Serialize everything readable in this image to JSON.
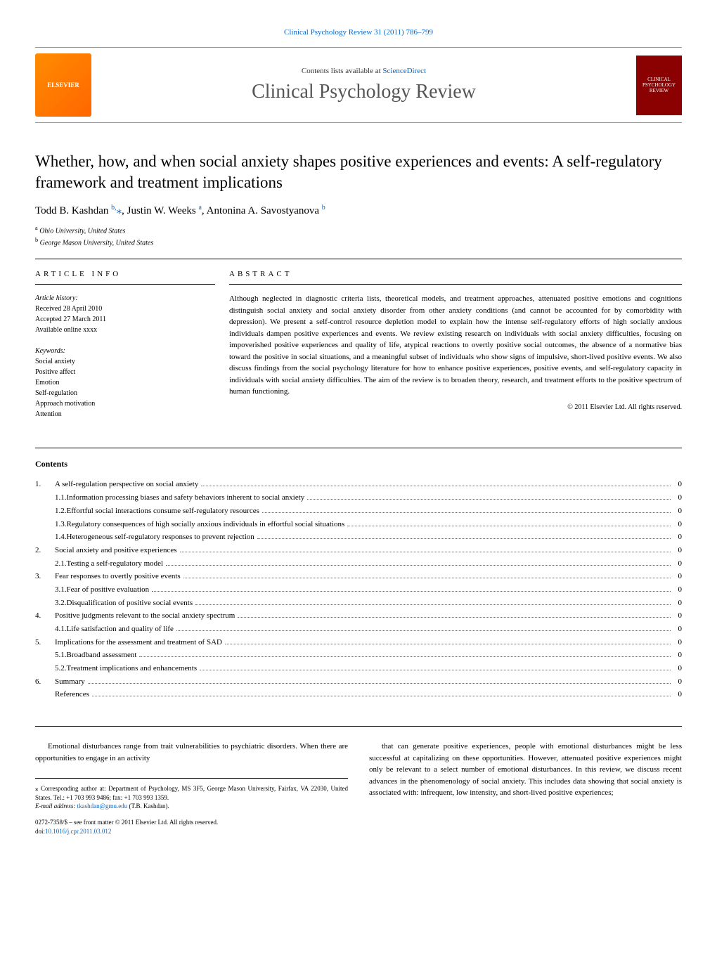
{
  "header_link": "Clinical Psychology Review 31 (2011) 786–799",
  "banner": {
    "contents_prefix": "Contents lists available at ",
    "contents_link": "ScienceDirect",
    "journal_title": "Clinical Psychology Review",
    "logo_text": "ELSEVIER",
    "cover_text": "CLINICAL PSYCHOLOGY REVIEW"
  },
  "title": "Whether, how, and when social anxiety shapes positive experiences and events: A self-regulatory framework and treatment implications",
  "authors_html": "Todd B. Kashdan",
  "author1": {
    "name": "Todd B. Kashdan",
    "sup": "b,",
    "mark": "⁎"
  },
  "author2": {
    "name": "Justin W. Weeks",
    "sup": "a"
  },
  "author3": {
    "name": "Antonina A. Savostyanova",
    "sup": "b"
  },
  "affiliations": {
    "a": "Ohio University, United States",
    "b": "George Mason University, United States"
  },
  "info": {
    "heading": "article info",
    "history_label": "Article history:",
    "received": "Received 28 April 2010",
    "accepted": "Accepted 27 March 2011",
    "available": "Available online xxxx",
    "keywords_label": "Keywords:",
    "keywords": [
      "Social anxiety",
      "Positive affect",
      "Emotion",
      "Self-regulation",
      "Approach motivation",
      "Attention"
    ]
  },
  "abstract": {
    "heading": "abstract",
    "text": "Although neglected in diagnostic criteria lists, theoretical models, and treatment approaches, attenuated positive emotions and cognitions distinguish social anxiety and social anxiety disorder from other anxiety conditions (and cannot be accounted for by comorbidity with depression). We present a self-control resource depletion model to explain how the intense self-regulatory efforts of high socially anxious individuals dampen positive experiences and events. We review existing research on individuals with social anxiety difficulties, focusing on impoverished positive experiences and quality of life, atypical reactions to overtly positive social outcomes, the absence of a normative bias toward the positive in social situations, and a meaningful subset of individuals who show signs of impulsive, short-lived positive events. We also discuss findings from the social psychology literature for how to enhance positive experiences, positive events, and self-regulatory capacity in individuals with social anxiety difficulties. The aim of the review is to broaden theory, research, and treatment efforts to the positive spectrum of human functioning.",
    "copyright": "© 2011 Elsevier Ltd. All rights reserved."
  },
  "contents": {
    "heading": "Contents",
    "items": [
      {
        "num": "1.",
        "text": "A self-regulation perspective on social anxiety",
        "page": "0"
      },
      {
        "num": "1.1.",
        "text": "Information processing biases and safety behaviors inherent to social anxiety",
        "page": "0",
        "sub": true
      },
      {
        "num": "1.2.",
        "text": "Effortful social interactions consume self-regulatory resources",
        "page": "0",
        "sub": true
      },
      {
        "num": "1.3.",
        "text": "Regulatory consequences of high socially anxious individuals in effortful social situations",
        "page": "0",
        "sub": true
      },
      {
        "num": "1.4.",
        "text": "Heterogeneous self-regulatory responses to prevent rejection",
        "page": "0",
        "sub": true
      },
      {
        "num": "2.",
        "text": "Social anxiety and positive experiences",
        "page": "0"
      },
      {
        "num": "2.1.",
        "text": "Testing a self-regulatory model",
        "page": "0",
        "sub": true
      },
      {
        "num": "3.",
        "text": "Fear responses to overtly positive events",
        "page": "0"
      },
      {
        "num": "3.1.",
        "text": "Fear of positive evaluation",
        "page": "0",
        "sub": true
      },
      {
        "num": "3.2.",
        "text": "Disqualification of positive social events",
        "page": "0",
        "sub": true
      },
      {
        "num": "4.",
        "text": "Positive judgments relevant to the social anxiety spectrum",
        "page": "0"
      },
      {
        "num": "4.1.",
        "text": "Life satisfaction and quality of life",
        "page": "0",
        "sub": true
      },
      {
        "num": "5.",
        "text": "Implications for the assessment and treatment of SAD",
        "page": "0"
      },
      {
        "num": "5.1.",
        "text": "Broadband assessment",
        "page": "0",
        "sub": true
      },
      {
        "num": "5.2.",
        "text": "Treatment implications and enhancements",
        "page": "0",
        "sub": true
      },
      {
        "num": "6.",
        "text": "Summary",
        "page": "0"
      },
      {
        "num": "",
        "text": "References",
        "page": "0"
      }
    ]
  },
  "body": {
    "col1": "Emotional disturbances range from trait vulnerabilities to psychiatric disorders. When there are opportunities to engage in an activity",
    "col2": "that can generate positive experiences, people with emotional disturbances might be less successful at capitalizing on these opportunities. However, attenuated positive experiences might only be relevant to a select number of emotional disturbances. In this review, we discuss recent advances in the phenomenology of social anxiety. This includes data showing that social anxiety is associated with: infrequent, low intensity, and short-lived positive experiences;"
  },
  "corresponding": {
    "mark": "⁎",
    "text": "Corresponding author at: Department of Psychology, MS 3F5, George Mason University, Fairfax, VA 22030, United States. Tel.: +1 703 993 9486; fax: +1 703 993 1359.",
    "email_label": "E-mail address:",
    "email": "tkashdan@gmu.edu",
    "email_suffix": "(T.B. Kashdan)."
  },
  "footer": {
    "line1": "0272-7358/$ – see front matter © 2011 Elsevier Ltd. All rights reserved.",
    "doi_label": "doi:",
    "doi": "10.1016/j.cpr.2011.03.012"
  }
}
